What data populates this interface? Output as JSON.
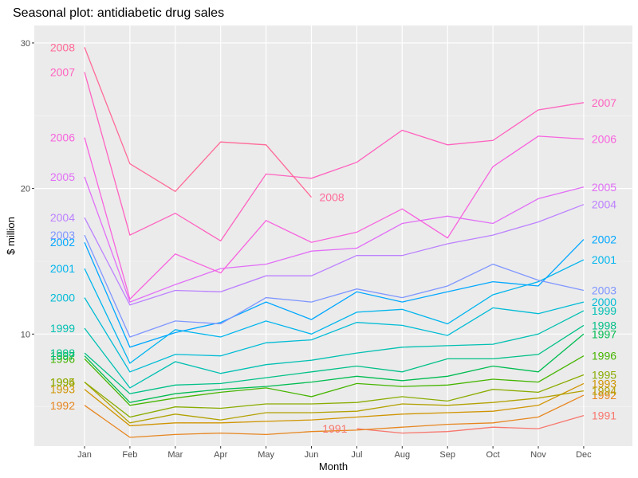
{
  "chart_data": {
    "type": "line",
    "title": "Seasonal plot: antidiabetic drug sales",
    "xlabel": "Month",
    "ylabel": "$ million",
    "categories": [
      "Jan",
      "Feb",
      "Mar",
      "Apr",
      "May",
      "Jun",
      "Jul",
      "Aug",
      "Sep",
      "Oct",
      "Nov",
      "Dec"
    ],
    "ylim": [
      2.3,
      31.2
    ],
    "yticks": [
      10,
      20,
      30
    ],
    "grid": true,
    "legend": "none",
    "series": [
      {
        "name": "1991",
        "color": "#F8766D",
        "start": 6,
        "values": [
          null,
          null,
          null,
          null,
          null,
          null,
          3.5,
          3.2,
          3.3,
          3.6,
          3.5,
          4.4
        ],
        "label_start": "1991",
        "label_end": "1991"
      },
      {
        "name": "1992",
        "color": "#E7851E",
        "values": [
          5.1,
          2.9,
          3.1,
          3.2,
          3.1,
          3.3,
          3.4,
          3.6,
          3.8,
          3.9,
          4.3,
          5.8
        ],
        "label_start": "1992",
        "label_end": "1992"
      },
      {
        "name": "1993",
        "color": "#D09400",
        "values": [
          6.2,
          3.7,
          3.9,
          3.9,
          4.0,
          4.1,
          4.3,
          4.5,
          4.6,
          4.7,
          5.1,
          6.6
        ],
        "label_start": "1993",
        "label_end": "1993"
      },
      {
        "name": "1994",
        "color": "#B2A100",
        "values": [
          6.7,
          3.9,
          4.5,
          4.1,
          4.6,
          4.6,
          4.7,
          5.2,
          5.1,
          5.3,
          5.6,
          6.1
        ],
        "label_start": "1994",
        "label_end": "1994"
      },
      {
        "name": "1995",
        "color": "#89AC00",
        "values": [
          6.7,
          4.3,
          5.0,
          4.9,
          5.2,
          5.2,
          5.3,
          5.7,
          5.4,
          6.2,
          6.0,
          7.2
        ],
        "label_start": "1995",
        "label_end": "1995"
      },
      {
        "name": "1996",
        "color": "#45B500",
        "values": [
          8.3,
          5.1,
          5.6,
          6.0,
          6.3,
          5.7,
          6.6,
          6.4,
          6.5,
          6.9,
          6.7,
          8.5
        ],
        "label_start": "1996",
        "label_end": "1996"
      },
      {
        "name": "1997",
        "color": "#00BC51",
        "values": [
          8.5,
          5.3,
          5.9,
          6.2,
          6.4,
          6.7,
          7.1,
          6.8,
          7.1,
          7.8,
          7.4,
          10.0
        ],
        "label_start": "1997",
        "label_end": "1997"
      },
      {
        "name": "1998",
        "color": "#00C087",
        "values": [
          8.7,
          5.9,
          6.5,
          6.6,
          7.0,
          7.4,
          7.8,
          7.4,
          8.3,
          8.3,
          8.6,
          10.6
        ],
        "label_start": "1998",
        "label_end": "1998"
      },
      {
        "name": "1999",
        "color": "#00C0B2",
        "values": [
          10.4,
          6.3,
          8.1,
          7.3,
          7.9,
          8.2,
          8.7,
          9.1,
          9.2,
          9.3,
          10.0,
          11.6
        ],
        "label_start": "1999",
        "label_end": "1999"
      },
      {
        "name": "2000",
        "color": "#00BCD6",
        "values": [
          12.5,
          7.4,
          8.6,
          8.5,
          9.4,
          9.6,
          10.8,
          10.6,
          9.9,
          11.8,
          11.4,
          12.2
        ],
        "label_start": "2000",
        "label_end": "2000"
      },
      {
        "name": "2001",
        "color": "#00B5EE",
        "values": [
          14.5,
          8.0,
          10.3,
          9.8,
          10.9,
          10.0,
          11.5,
          11.7,
          10.7,
          12.7,
          13.6,
          15.1
        ],
        "label_start": "2001",
        "label_end": "2001"
      },
      {
        "name": "2002",
        "color": "#00A7FF",
        "values": [
          16.3,
          9.1,
          10.1,
          10.8,
          12.2,
          11.0,
          12.9,
          12.2,
          12.9,
          13.6,
          13.3,
          16.5
        ],
        "label_start": "2002",
        "label_end": "2002"
      },
      {
        "name": "2003",
        "color": "#7F96FF",
        "values": [
          16.8,
          9.8,
          10.9,
          10.7,
          12.5,
          12.2,
          13.1,
          12.5,
          13.3,
          14.8,
          13.7,
          13.0
        ],
        "label_start": "2003",
        "label_end": "2003"
      },
      {
        "name": "2004",
        "color": "#BC81FF",
        "values": [
          18.0,
          12.0,
          13.0,
          12.9,
          14.0,
          14.0,
          15.4,
          15.4,
          16.2,
          16.8,
          17.7,
          18.9
        ],
        "label_start": "2004",
        "label_end": "2004"
      },
      {
        "name": "2005",
        "color": "#E26EF7",
        "values": [
          20.8,
          12.2,
          13.4,
          14.5,
          14.8,
          15.7,
          15.9,
          17.6,
          18.1,
          17.6,
          19.3,
          20.1
        ],
        "label_start": "2005",
        "label_end": "2005"
      },
      {
        "name": "2006",
        "color": "#F863DF",
        "values": [
          23.5,
          12.4,
          15.5,
          14.2,
          17.8,
          16.3,
          17.0,
          18.6,
          16.6,
          21.5,
          23.6,
          23.4
        ],
        "label_start": "2006",
        "label_end": "2006"
      },
      {
        "name": "2007",
        "color": "#FF62BF",
        "values": [
          28.0,
          16.8,
          18.3,
          16.4,
          21.0,
          20.7,
          21.8,
          24.0,
          23.0,
          23.3,
          25.4,
          25.9
        ],
        "label_start": "2007",
        "label_end": "2007"
      },
      {
        "name": "2008",
        "color": "#FF6A98",
        "values": [
          29.7,
          21.7,
          19.8,
          23.2,
          23.0,
          19.4,
          null,
          null,
          null,
          null,
          null,
          null
        ],
        "label_start": "2008",
        "label_end": "2008"
      }
    ]
  }
}
